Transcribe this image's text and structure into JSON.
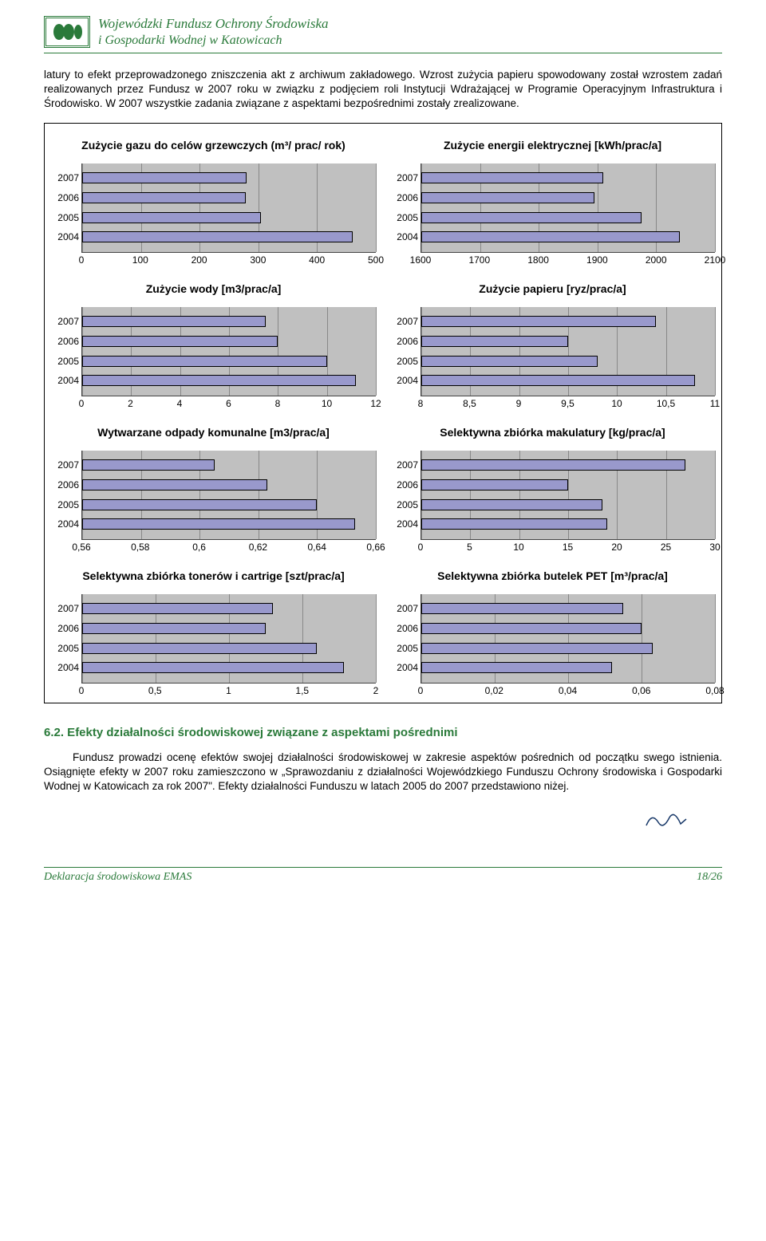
{
  "org": {
    "line1": "Wojewódzki Fundusz Ochrony Środowiska",
    "line2": "i Gospodarki Wodnej w Katowicach"
  },
  "para1": "latury to efekt przeprowadzonego zniszczenia akt z archiwum zakładowego. Wzrost zużycia papieru spowodowany został wzrostem zadań realizowanych przez Fundusz w 2007 roku w związku z podjęciem roli Instytucji Wdrażającej w Programie Operacyjnym Infrastruktura i Środowisko. W 2007 wszystkie zadania związane z aspektami bezpośrednimi zostały zrealizowane.",
  "section_head": "6.2. Efekty działalności środowiskowej związane z aspektami pośrednimi",
  "para2": "Fundusz prowadzi ocenę efektów swojej działalności środowiskowej w zakresie aspektów pośrednich od początku swego istnienia. Osiągnięte efekty w 2007 roku zamieszczono w „Sprawozdaniu z działalności Wojewódzkiego Funduszu Ochrony środowiska i Gospodarki Wodnej w Katowicach za rok 2007\". Efekty działalności Funduszu w latach 2005 do 2007 przedstawiono niżej.",
  "footer": {
    "left": "Deklaracja środowiskowa EMAS",
    "right": "18/26"
  },
  "bar_style": {
    "fill": "#9999cc",
    "border": "#000000",
    "plot_bg": "#c0c0c0",
    "grid": "#888888"
  },
  "charts": [
    {
      "title": "Zużycie gazu do celów grzewczych (m³/ prac/ rok)",
      "categories": [
        "2007",
        "2006",
        "2005",
        "2004"
      ],
      "values": [
        280,
        278,
        305,
        460
      ],
      "xmin": 0,
      "xmax": 500,
      "xticks": [
        0,
        100,
        200,
        300,
        400,
        500
      ]
    },
    {
      "title": "Zużycie energii elektrycznej [kWh/prac/a]",
      "categories": [
        "2007",
        "2006",
        "2005",
        "2004"
      ],
      "values": [
        1910,
        1895,
        1975,
        2040
      ],
      "xmin": 1600,
      "xmax": 2100,
      "xticks": [
        1600,
        1700,
        1800,
        1900,
        2000,
        2100
      ]
    },
    {
      "title": "Zużycie wody [m3/prac/a]",
      "categories": [
        "2007",
        "2006",
        "2005",
        "2004"
      ],
      "values": [
        7.5,
        8.0,
        10.0,
        11.2
      ],
      "xmin": 0,
      "xmax": 12,
      "xticks": [
        0,
        2,
        4,
        6,
        8,
        10,
        12
      ]
    },
    {
      "title": "Zużycie papieru [ryz/prac/a]",
      "categories": [
        "2007",
        "2006",
        "2005",
        "2004"
      ],
      "values": [
        10.4,
        9.5,
        9.8,
        10.8
      ],
      "xmin": 8,
      "xmax": 11,
      "xticks": [
        8,
        8.5,
        9,
        9.5,
        10,
        10.5,
        11
      ],
      "xtick_labels": [
        "8",
        "8,5",
        "9",
        "9,5",
        "10",
        "10,5",
        "11"
      ]
    },
    {
      "title": "Wytwarzane odpady komunalne [m3/prac/a]",
      "categories": [
        "2007",
        "2006",
        "2005",
        "2004"
      ],
      "values": [
        0.605,
        0.623,
        0.64,
        0.653
      ],
      "xmin": 0.56,
      "xmax": 0.66,
      "xticks": [
        0.56,
        0.58,
        0.6,
        0.62,
        0.64,
        0.66
      ],
      "xtick_labels": [
        "0,56",
        "0,58",
        "0,6",
        "0,62",
        "0,64",
        "0,66"
      ]
    },
    {
      "title": "Selektywna zbiórka makulatury [kg/prac/a]",
      "categories": [
        "2007",
        "2006",
        "2005",
        "2004"
      ],
      "values": [
        27,
        15,
        18.5,
        19
      ],
      "xmin": 0,
      "xmax": 30,
      "xticks": [
        0,
        5,
        10,
        15,
        20,
        25,
        30
      ]
    },
    {
      "title": "Selektywna zbiórka tonerów i cartrige [szt/prac/a]",
      "categories": [
        "2007",
        "2006",
        "2005",
        "2004"
      ],
      "values": [
        1.3,
        1.25,
        1.6,
        1.78
      ],
      "xmin": 0,
      "xmax": 2,
      "xticks": [
        0,
        0.5,
        1,
        1.5,
        2
      ],
      "xtick_labels": [
        "0",
        "0,5",
        "1",
        "1,5",
        "2"
      ]
    },
    {
      "title": "Selektywna zbiórka butelek PET [m³/prac/a]",
      "categories": [
        "2007",
        "2006",
        "2005",
        "2004"
      ],
      "values": [
        0.055,
        0.06,
        0.063,
        0.052
      ],
      "xmin": 0,
      "xmax": 0.08,
      "xticks": [
        0,
        0.02,
        0.04,
        0.06,
        0.08
      ],
      "xtick_labels": [
        "0",
        "0,02",
        "0,04",
        "0,06",
        "0,08"
      ]
    }
  ]
}
